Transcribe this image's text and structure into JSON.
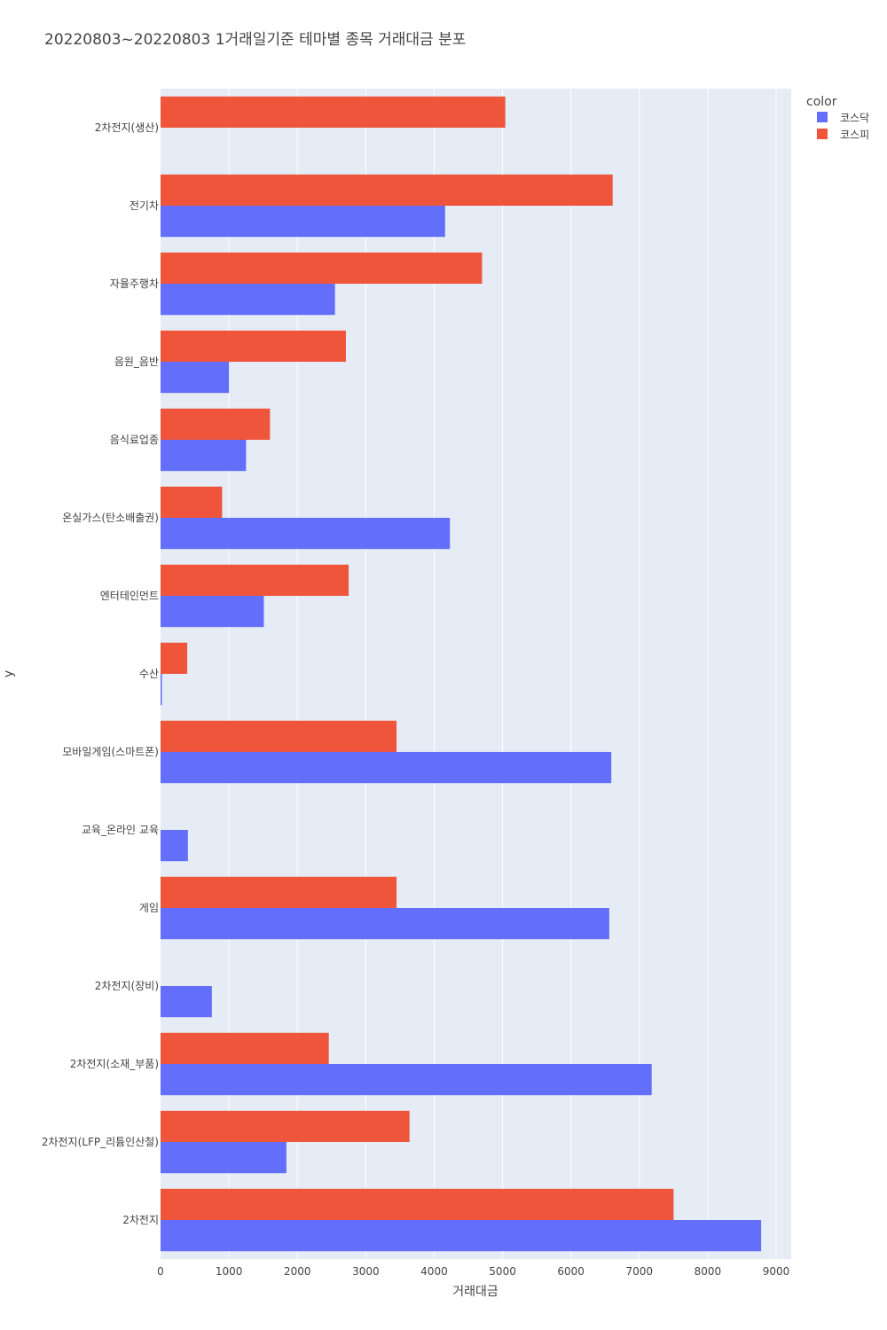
{
  "chart_data": {
    "type": "bar",
    "orientation": "horizontal",
    "barmode": "group",
    "title": "20220803~20220803 1거래일기준 테마별 종목 거래대금 분포",
    "xlabel": "거래대금",
    "ylabel": "y",
    "xlim": [
      0,
      9220
    ],
    "xticks": [
      0,
      1000,
      2000,
      3000,
      4000,
      5000,
      6000,
      7000,
      8000,
      9000
    ],
    "xtick_labels": [
      "0",
      "1000",
      "2000",
      "3000",
      "4000",
      "5000",
      "6000",
      "7000",
      "8000",
      "9000"
    ],
    "grid": true,
    "legend": {
      "title": "color",
      "position": "top-right"
    },
    "categories": [
      "2차전지(생산)",
      "전기차",
      "자율주행차",
      "음원_음반",
      "음식료업종",
      "온실가스(탄소배출권)",
      "엔터테인먼트",
      "수산",
      "모바일게임(스마트폰)",
      "교육_온라인 교육",
      "게임",
      "2차전지(장비)",
      "2차전지(소재_부품)",
      "2차전지(LFP_리튬인산철)",
      "2차전지"
    ],
    "series": [
      {
        "name": "코스닥",
        "color": "#636efa",
        "values": [
          0,
          4160,
          2550,
          1000,
          1250,
          4230,
          1510,
          20,
          6590,
          400,
          6560,
          750,
          7180,
          1840,
          8780
        ]
      },
      {
        "name": "코스피",
        "color": "#ef553b",
        "values": [
          5040,
          6610,
          4700,
          2710,
          1600,
          900,
          2750,
          390,
          3450,
          0,
          3450,
          0,
          2460,
          3640,
          7500
        ]
      }
    ]
  }
}
